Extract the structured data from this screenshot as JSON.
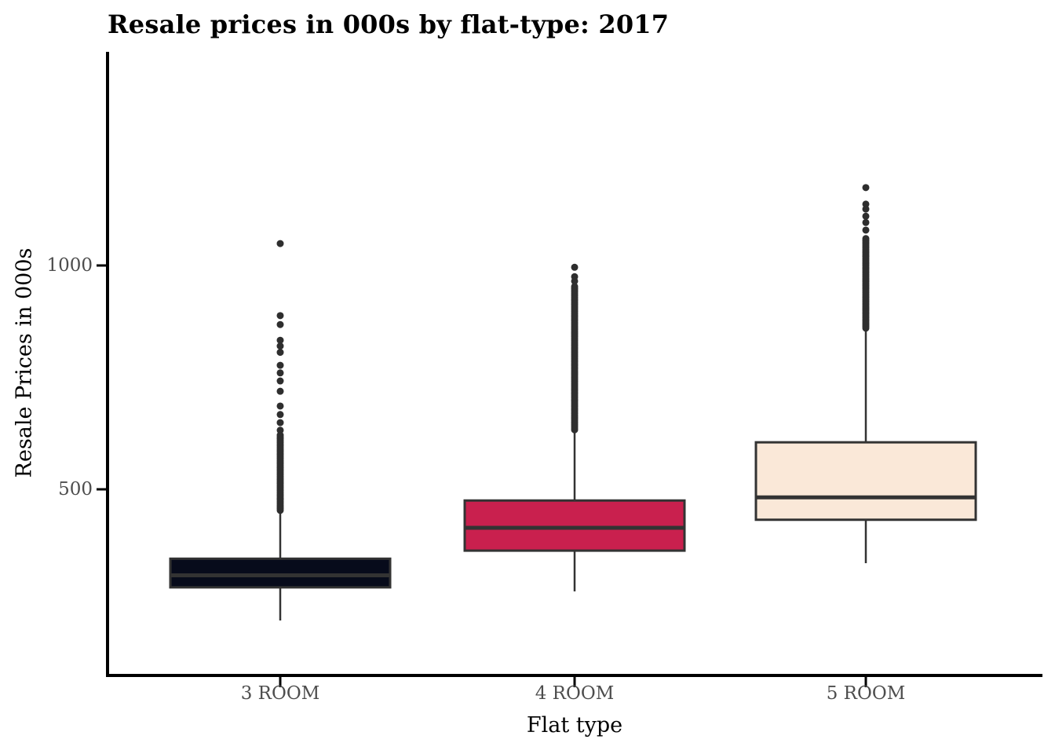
{
  "title": "Resale prices in 000s by flat-type: 2017",
  "colors": {
    "background": "#ffffff",
    "axis_line": "#000000",
    "tick_label": "#4d4d4d",
    "box_stroke": "#333333",
    "median_stroke": "#333333",
    "whisker_stroke": "#333333",
    "outlier_fill": "#2e2e2e"
  },
  "chart_data": {
    "type": "boxplot",
    "title": "Resale prices in 000s by flat-type: 2017",
    "xlabel": "Flat type",
    "ylabel": "Resale Prices in 000s",
    "categories": [
      "3 ROOM",
      "4 ROOM",
      "5 ROOM"
    ],
    "yticks": [
      {
        "value": 500,
        "label": "500"
      },
      {
        "value": 1000,
        "label": "1000"
      }
    ],
    "ylim": [
      80,
      1475
    ],
    "grid": "off",
    "legend": "none",
    "series": [
      {
        "label": "3 ROOM",
        "fill": "#070b1b",
        "min": 207,
        "q1": 281,
        "median": 308,
        "q3": 345,
        "whisker_high": 453,
        "outliers": [
          632,
          649,
          667,
          686,
          719,
          742,
          760,
          777,
          806,
          820,
          833,
          868,
          888,
          1049
        ],
        "outlier_ranges": [
          {
            "from": 453,
            "to": 623,
            "step": 4
          }
        ]
      },
      {
        "label": "4 ROOM",
        "fill": "#c9204e",
        "min": 272,
        "q1": 363,
        "median": 414,
        "q3": 475,
        "whisker_high": 633,
        "outliers": [
          965,
          975,
          996
        ],
        "outlier_ranges": [
          {
            "from": 633,
            "to": 955,
            "step": 4
          }
        ]
      },
      {
        "label": "5 ROOM",
        "fill": "#fae8d8",
        "min": 335,
        "q1": 432,
        "median": 482,
        "q3": 605,
        "whisker_high": 853,
        "outliers": [
          1079,
          1096,
          1110,
          1126,
          1137,
          1174
        ],
        "outlier_ranges": [
          {
            "from": 860,
            "to": 1062,
            "step": 4
          }
        ]
      }
    ]
  }
}
